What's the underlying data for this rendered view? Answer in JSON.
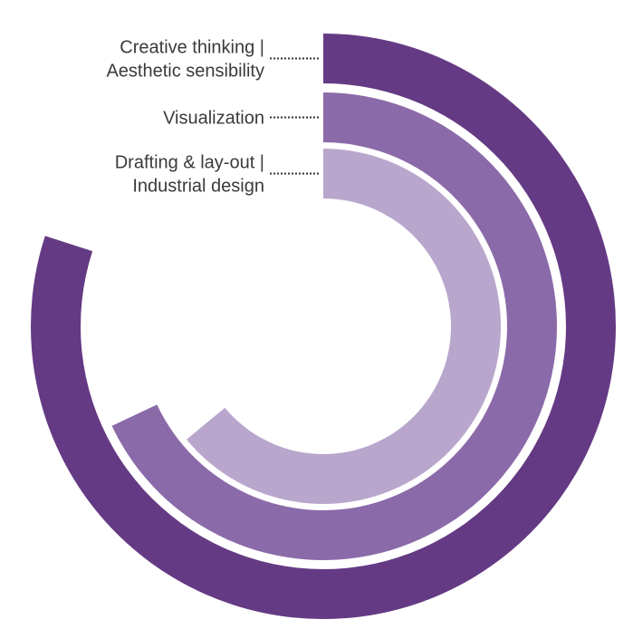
{
  "chart_data": {
    "type": "radial-bar",
    "start_angle_deg": 0,
    "direction": "clockwise",
    "full_scale": 100,
    "series": [
      {
        "label_lines": [
          "Creative thinking |",
          "Aesthetic sensibility"
        ],
        "value": 80,
        "color": "#653a84"
      },
      {
        "label_lines": [
          "Visualization"
        ],
        "value": 68,
        "color": "#8b6aa9"
      },
      {
        "label_lines": [
          "Drafting & lay-out |",
          "Industrial design"
        ],
        "value": 64,
        "color": "#b9a6cd"
      }
    ]
  }
}
